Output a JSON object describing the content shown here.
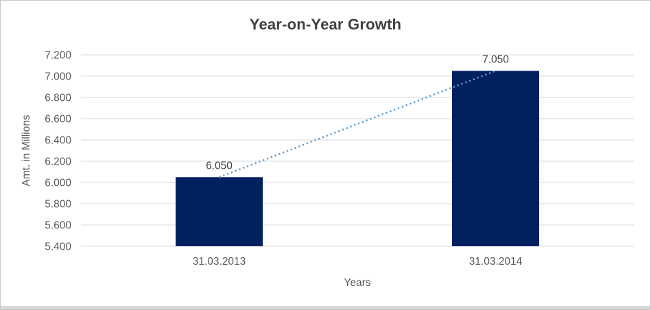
{
  "chart_data": {
    "type": "bar",
    "title": "Year-on-Year Growth",
    "xlabel": "Years",
    "ylabel": "Amt. in Millions",
    "categories": [
      "31.03.2013",
      "31.03.2014"
    ],
    "values": [
      6.05,
      7.05
    ],
    "data_labels": [
      "6.050",
      "7.050"
    ],
    "ylim": [
      5.4,
      7.2
    ],
    "y_ticks": [
      {
        "label": "5.400",
        "value": 5.4
      },
      {
        "label": "5.600",
        "value": 5.6
      },
      {
        "label": "5.800",
        "value": 5.8
      },
      {
        "label": "6.000",
        "value": 6.0
      },
      {
        "label": "6.200",
        "value": 6.2
      },
      {
        "label": "6.400",
        "value": 6.4
      },
      {
        "label": "6.600",
        "value": 6.6
      },
      {
        "label": "6.800",
        "value": 6.8
      },
      {
        "label": "7.000",
        "value": 7.0
      },
      {
        "label": "7.200",
        "value": 7.2
      }
    ],
    "grid": true,
    "legend": "none",
    "trendline": {
      "style": "dotted",
      "connects": "bar-top-centers"
    },
    "colors": {
      "bar": "#002060",
      "trendline": "#5B9BD5",
      "gridline": "#D9D9D9",
      "title_text": "#404040",
      "axis_text": "#595959",
      "data_label_text": "#404040"
    }
  }
}
